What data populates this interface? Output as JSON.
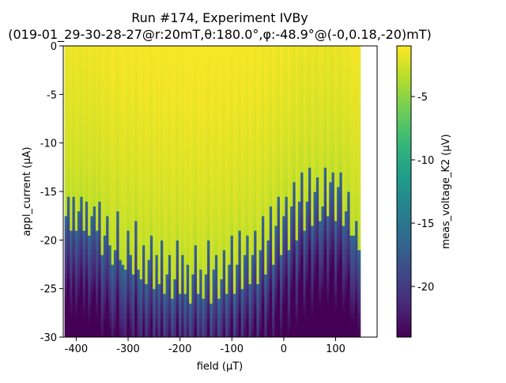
{
  "chart_data": {
    "type": "heatmap",
    "title_line1": "Run #174, Experiment IVBy",
    "title_line2": "(019-01_29-30-28-27@r:20mT,θ:180.0°,φ:-48.9°@(-0,0.18,-20)mT)",
    "xlabel": "field (μT)",
    "ylabel": "appl_current (μA)",
    "colorbar_label": "meas_voltage_K2 (μV)",
    "xlim": [
      -425,
      180
    ],
    "ylim": [
      -30,
      0
    ],
    "clim": [
      -24,
      -1
    ],
    "x_ticks": [
      {
        "value": -400,
        "label": "-400"
      },
      {
        "value": -300,
        "label": "-300"
      },
      {
        "value": -200,
        "label": "-200"
      },
      {
        "value": -100,
        "label": "-100"
      },
      {
        "value": 0,
        "label": "0"
      },
      {
        "value": 100,
        "label": "100"
      }
    ],
    "y_ticks": [
      {
        "value": 0,
        "label": "0"
      },
      {
        "value": -5,
        "label": "-5"
      },
      {
        "value": -10,
        "label": "-10"
      },
      {
        "value": -15,
        "label": "-15"
      },
      {
        "value": -20,
        "label": "-20"
      },
      {
        "value": -25,
        "label": "-25"
      },
      {
        "value": -30,
        "label": "-30"
      }
    ],
    "colorbar_ticks": [
      {
        "value": -5,
        "label": "-5"
      },
      {
        "value": -10,
        "label": "-10"
      },
      {
        "value": -15,
        "label": "-15"
      },
      {
        "value": -20,
        "label": "-20"
      }
    ],
    "colormap": [
      "#440154",
      "#482878",
      "#3e4989",
      "#31688e",
      "#26828e",
      "#1f9e89",
      "#35b779",
      "#6ece58",
      "#b5de2b",
      "#fde725"
    ],
    "switching_current_columns": {
      "field_start": -420,
      "field_step": 5,
      "switch_current": [
        -17.4,
        -15.3,
        -18.9,
        -15.5,
        -18.9,
        -17.1,
        -15.3,
        -18.9,
        -15.8,
        -19.7,
        -17.6,
        -16.4,
        -19.2,
        -16.0,
        -21.5,
        -19.4,
        -17.3,
        -20.3,
        -22.5,
        -20.8,
        -17.2,
        -21.8,
        -22.4,
        -23.2,
        -19.0,
        -21.4,
        -23.5,
        -17.8,
        -22.9,
        -24.1,
        -20.3,
        -24.5,
        -22.1,
        -19.6,
        -25.1,
        -21.4,
        -24.4,
        -20.2,
        -25.5,
        -23.4,
        -21.3,
        -25.8,
        -24.0,
        -19.9,
        -25.4,
        -21.5,
        -25.6,
        -22.3,
        -26.3,
        -23.4,
        -20.4,
        -25.7,
        -22.8,
        -26.0,
        -23.4,
        -20.0,
        -26.5,
        -23.2,
        -21.5,
        -26.0,
        -23.8,
        -20.8,
        -25.5,
        -22.6,
        -19.5,
        -25.7,
        -22.6,
        -19.2,
        -24.8,
        -21.7,
        -19.6,
        -24.4,
        -21.6,
        -18.9,
        -24.4,
        -20.9,
        -17.6,
        -23.6,
        -19.8,
        -16.7,
        -22.6,
        -18.4,
        -15.7,
        -21.4,
        -17.6,
        -15.5,
        -20.8,
        -16.5,
        -13.8,
        -19.9,
        -15.8,
        -13.0,
        -19.0,
        -15.8,
        -12.7,
        -18.7,
        -15.2,
        -13.3,
        -17.9,
        -16.6,
        -12.6,
        -17.6,
        -14.2,
        -12.9,
        -18.2,
        -14.5,
        -13.2,
        -18.3,
        -16.9,
        -14.9,
        -19.3,
        -19.6,
        -17.8,
        -20.9
      ]
    }
  }
}
